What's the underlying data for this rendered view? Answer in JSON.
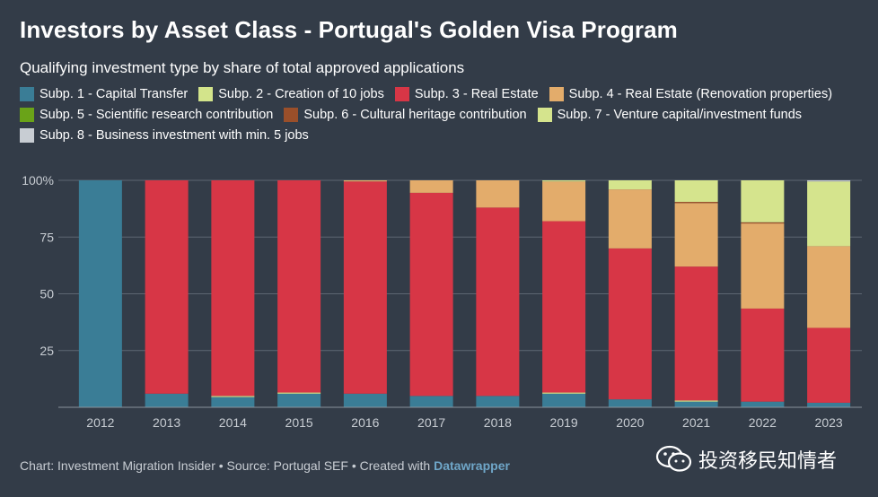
{
  "title": "Investors by Asset Class  - Portugal's Golden Visa Program",
  "subtitle": "Qualifying investment type by share of total approved applications",
  "footer": {
    "prefix": "Chart: Investment Migration Insider • Source: Portugal SEF • Created with ",
    "brand": "Datawrapper"
  },
  "watermark": "投资移民知情者",
  "chart_data": {
    "type": "bar",
    "stacked": true,
    "categories": [
      "2012",
      "2013",
      "2014",
      "2015",
      "2016",
      "2017",
      "2018",
      "2019",
      "2020",
      "2021",
      "2022",
      "2023"
    ],
    "ylim": [
      0,
      100
    ],
    "yticks": [
      25,
      50,
      75,
      100
    ],
    "ytick_labels": [
      "25",
      "50",
      "75",
      "100%"
    ],
    "series": [
      {
        "name": "Subp. 1 - Capital Transfer",
        "color": "#3a7d96",
        "values": [
          100,
          6,
          4.5,
          6,
          6,
          5,
          5,
          6,
          3.5,
          2.5,
          2.5,
          2
        ]
      },
      {
        "name": "Subp. 2 - Creation of 10 jobs",
        "color": "#d3e48b",
        "values": [
          0,
          0,
          0.5,
          0.5,
          0,
          0,
          0,
          0.5,
          0,
          0.5,
          0,
          0
        ]
      },
      {
        "name": "Subp. 3 - Real Estate",
        "color": "#d73646",
        "values": [
          0,
          94,
          95,
          93.5,
          93.5,
          89.5,
          83,
          75.5,
          66.5,
          59,
          41,
          33
        ]
      },
      {
        "name": "Subp. 4 - Real Estate (Renovation properties)",
        "color": "#e3ac6b",
        "values": [
          0,
          0,
          0,
          0,
          0.5,
          5.5,
          12,
          17.5,
          26,
          28,
          37.5,
          36
        ]
      },
      {
        "name": "Subp. 5 - Scientific research contribution",
        "color": "#6aa318",
        "values": [
          0,
          0,
          0,
          0,
          0,
          0,
          0,
          0,
          0,
          0,
          0,
          0
        ]
      },
      {
        "name": "Subp. 6 - Cultural heritage contribution",
        "color": "#9a4f2a",
        "values": [
          0,
          0,
          0,
          0,
          0,
          0,
          0,
          0,
          0,
          0.5,
          0.5,
          0
        ]
      },
      {
        "name": "Subp. 7 - Venture capital/investment funds",
        "color": "#d5e48d",
        "values": [
          0,
          0,
          0,
          0,
          0,
          0,
          0,
          0.5,
          4,
          9.5,
          18.5,
          28.5
        ]
      },
      {
        "name": "Subp. 8 - Business investment with min. 5 jobs",
        "color": "#c8cdd3",
        "values": [
          0,
          0,
          0,
          0,
          0,
          0,
          0,
          0,
          0,
          0,
          0,
          0.5
        ]
      }
    ]
  }
}
